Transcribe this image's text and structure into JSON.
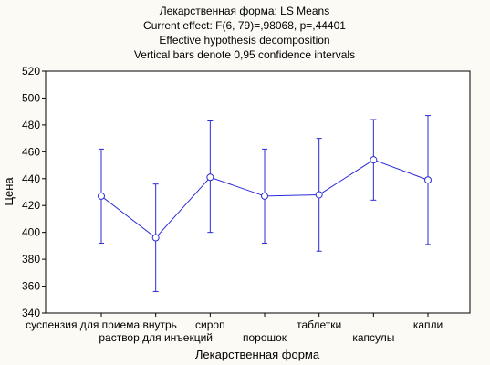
{
  "chart_data": {
    "type": "line",
    "title_lines": [
      "Лекарственная форма; LS Means",
      "Current effect: F(6, 79)=,98068, p=,44401",
      "Effective hypothesis decomposition",
      "Vertical bars denote 0,95 confidence intervals"
    ],
    "xlabel": "Лекарственная форма",
    "ylabel": "Цена",
    "ylim": [
      340,
      520
    ],
    "yticks": [
      340,
      360,
      380,
      400,
      420,
      440,
      460,
      480,
      500,
      520
    ],
    "grid": false,
    "categories": [
      "суспензия для приема внутрь",
      "раствор для инъекций",
      "сироп",
      "порошок",
      "таблетки",
      "капсулы",
      "капли"
    ],
    "series": [
      {
        "values": [
          427,
          396,
          441,
          427,
          428,
          454,
          439
        ],
        "ci_lower": [
          392,
          356,
          400,
          392,
          386,
          424,
          391
        ],
        "ci_upper": [
          462,
          436,
          483,
          462,
          470,
          484,
          487
        ]
      }
    ],
    "colors": {
      "series": "#2b2bd9",
      "axis": "#000000",
      "plot_bg": "#ffffff"
    }
  }
}
